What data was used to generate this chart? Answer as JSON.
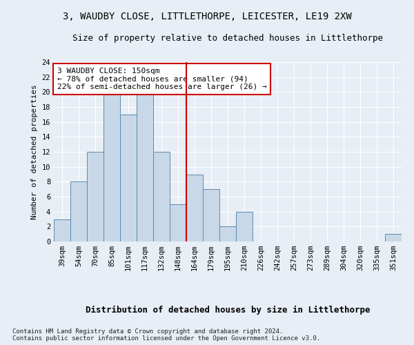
{
  "title1": "3, WAUDBY CLOSE, LITTLETHORPE, LEICESTER, LE19 2XW",
  "title2": "Size of property relative to detached houses in Littlethorpe",
  "xlabel": "Distribution of detached houses by size in Littlethorpe",
  "ylabel": "Number of detached properties",
  "categories": [
    "39sqm",
    "54sqm",
    "70sqm",
    "85sqm",
    "101sqm",
    "117sqm",
    "132sqm",
    "148sqm",
    "164sqm",
    "179sqm",
    "195sqm",
    "210sqm",
    "226sqm",
    "242sqm",
    "257sqm",
    "273sqm",
    "289sqm",
    "304sqm",
    "320sqm",
    "335sqm",
    "351sqm"
  ],
  "values": [
    3,
    8,
    12,
    20,
    17,
    20,
    12,
    5,
    9,
    7,
    2,
    4,
    0,
    0,
    0,
    0,
    0,
    0,
    0,
    0,
    1
  ],
  "bar_color": "#c8d8e8",
  "bar_edge_color": "#5a8ab0",
  "vline_x_idx": 7.5,
  "vline_color": "#cc0000",
  "annotation_text": "3 WAUDBY CLOSE: 150sqm\n← 78% of detached houses are smaller (94)\n22% of semi-detached houses are larger (26) →",
  "annotation_box_color": "white",
  "annotation_box_edge": "#cc0000",
  "ylim": [
    0,
    24
  ],
  "yticks": [
    0,
    2,
    4,
    6,
    8,
    10,
    12,
    14,
    16,
    18,
    20,
    22,
    24
  ],
  "footnote": "Contains HM Land Registry data © Crown copyright and database right 2024.\nContains public sector information licensed under the Open Government Licence v3.0.",
  "bg_color": "#e8eef5",
  "grid_color": "#ffffff",
  "title1_fontsize": 10,
  "title2_fontsize": 9,
  "xlabel_fontsize": 9,
  "ylabel_fontsize": 8,
  "tick_fontsize": 7.5,
  "annotation_fontsize": 8,
  "footnote_fontsize": 6.5
}
